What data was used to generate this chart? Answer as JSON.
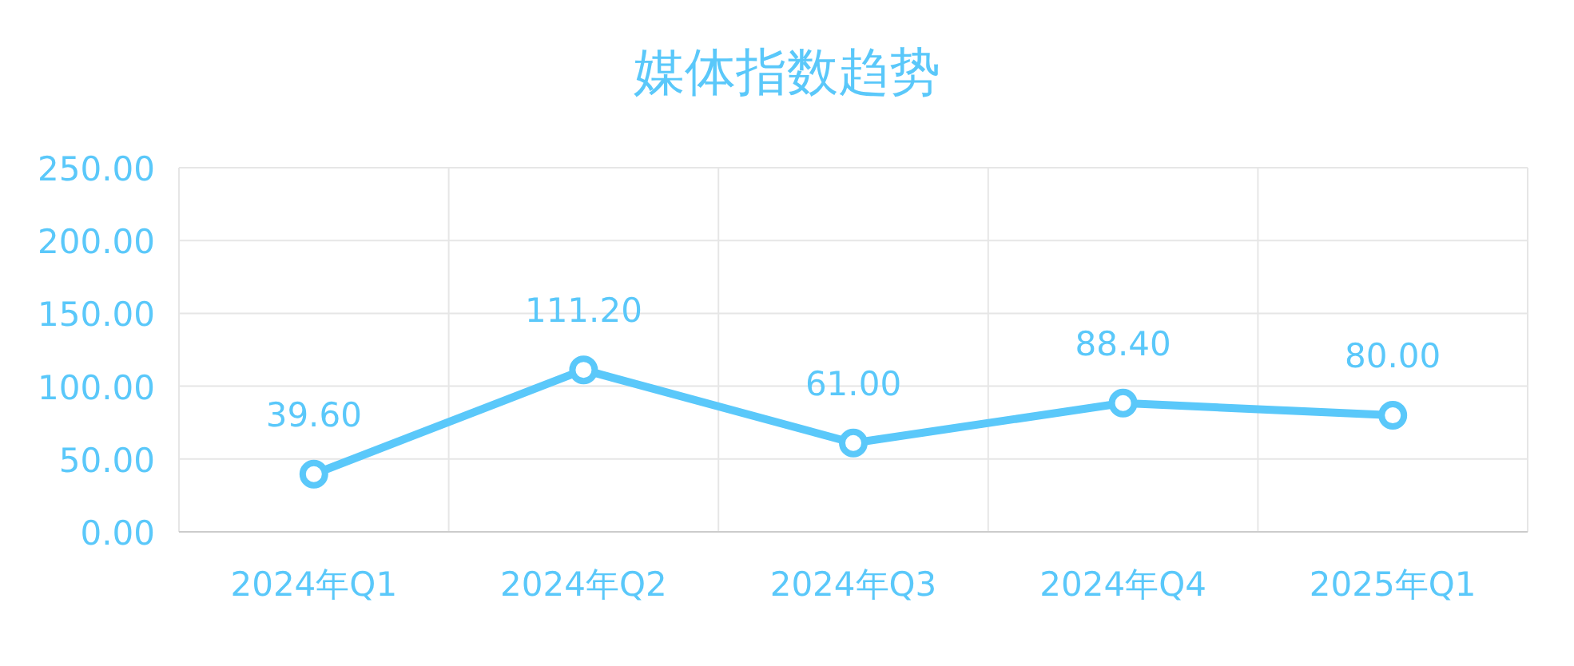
{
  "chart_data": {
    "type": "line",
    "title": "媒体指数趋势",
    "categories": [
      "2024年Q1",
      "2024年Q2",
      "2024年Q3",
      "2024年Q4",
      "2025年Q1"
    ],
    "series": [
      {
        "color": "#5ac8fa",
        "values": [
          39.6,
          111.2,
          61,
          88.4,
          80
        ],
        "value_labels": [
          "39.60",
          "111.20",
          "61.00",
          "88.40",
          "80.00"
        ]
      }
    ],
    "ylim": [
      0,
      250
    ],
    "yticks": [
      {
        "value": 0,
        "label": "0.00"
      },
      {
        "value": 50,
        "label": "50.00"
      },
      {
        "value": 100,
        "label": "100.00"
      },
      {
        "value": 150,
        "label": "150.00"
      },
      {
        "value": 200,
        "label": "200.00"
      },
      {
        "value": 250,
        "label": "250.00"
      }
    ],
    "grid": true,
    "marker": "circle",
    "line_style": "solid"
  }
}
